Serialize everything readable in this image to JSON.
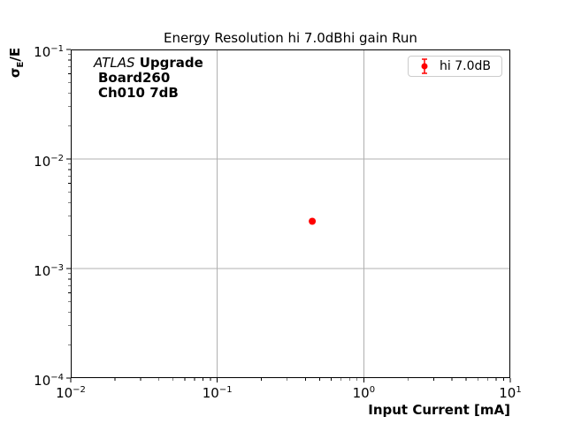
{
  "title": "Energy Resolution hi 7.0dBhi gain Run",
  "annotation": {
    "line1_italic": "ATLAS",
    "line1_bold": "Upgrade",
    "line2": "Board260",
    "line3": "Ch010 7dB"
  },
  "legend": {
    "label": "hi 7.0dB"
  },
  "axes": {
    "xlabel": "Input Current [mA]",
    "ylabel": {
      "sigma": "σ",
      "sub": "E",
      "rest": "/E"
    }
  },
  "chart_data": {
    "type": "scatter",
    "title": "Energy Resolution hi 7.0dBhi gain Run",
    "xlabel": "Input Current [mA]",
    "ylabel": "sigma_E/E",
    "xscale": "log",
    "yscale": "log",
    "xlim": [
      0.01,
      10
    ],
    "ylim": [
      0.0001,
      0.1
    ],
    "xtick_exponents": [
      -2,
      -1,
      0,
      1
    ],
    "ytick_exponents": [
      -1,
      -2,
      -3,
      -4
    ],
    "grid": true,
    "grid_color": "#b0b0b0",
    "spine_color": "#000000",
    "legend_position": "upper right",
    "series": [
      {
        "name": "hi 7.0dB",
        "color": "#ff0000",
        "marker": "circle-errorbar",
        "x": [
          0.445
        ],
        "y": [
          0.0027
        ],
        "yerr": [
          0.0001
        ]
      }
    ]
  }
}
